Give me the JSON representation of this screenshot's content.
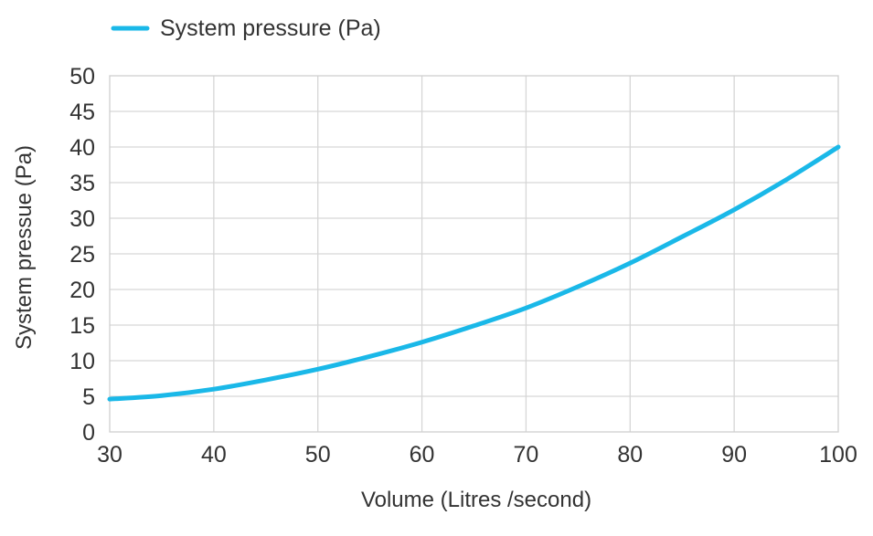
{
  "chart_data": {
    "type": "line",
    "title": "",
    "xlabel": "Volume (Litres /second)",
    "ylabel": "System pressue (Pa)",
    "xlim": [
      30,
      100
    ],
    "ylim": [
      0,
      50
    ],
    "x_ticks": [
      "30",
      "40",
      "50",
      "60",
      "70",
      "80",
      "90",
      "100"
    ],
    "y_ticks": [
      "0",
      "5",
      "10",
      "15",
      "20",
      "25",
      "30",
      "35",
      "40",
      "45",
      "50"
    ],
    "grid": true,
    "legend_position": "top-left",
    "series": [
      {
        "name": "System pressure (Pa)",
        "color": "#1ab8e8",
        "x": [
          30,
          35,
          40,
          45,
          50,
          55,
          60,
          65,
          70,
          75,
          80,
          85,
          90,
          95,
          100
        ],
        "y": [
          4.6,
          5.1,
          6.0,
          7.3,
          8.8,
          10.6,
          12.6,
          14.9,
          17.4,
          20.4,
          23.7,
          27.4,
          31.2,
          35.4,
          40.0
        ]
      }
    ]
  }
}
